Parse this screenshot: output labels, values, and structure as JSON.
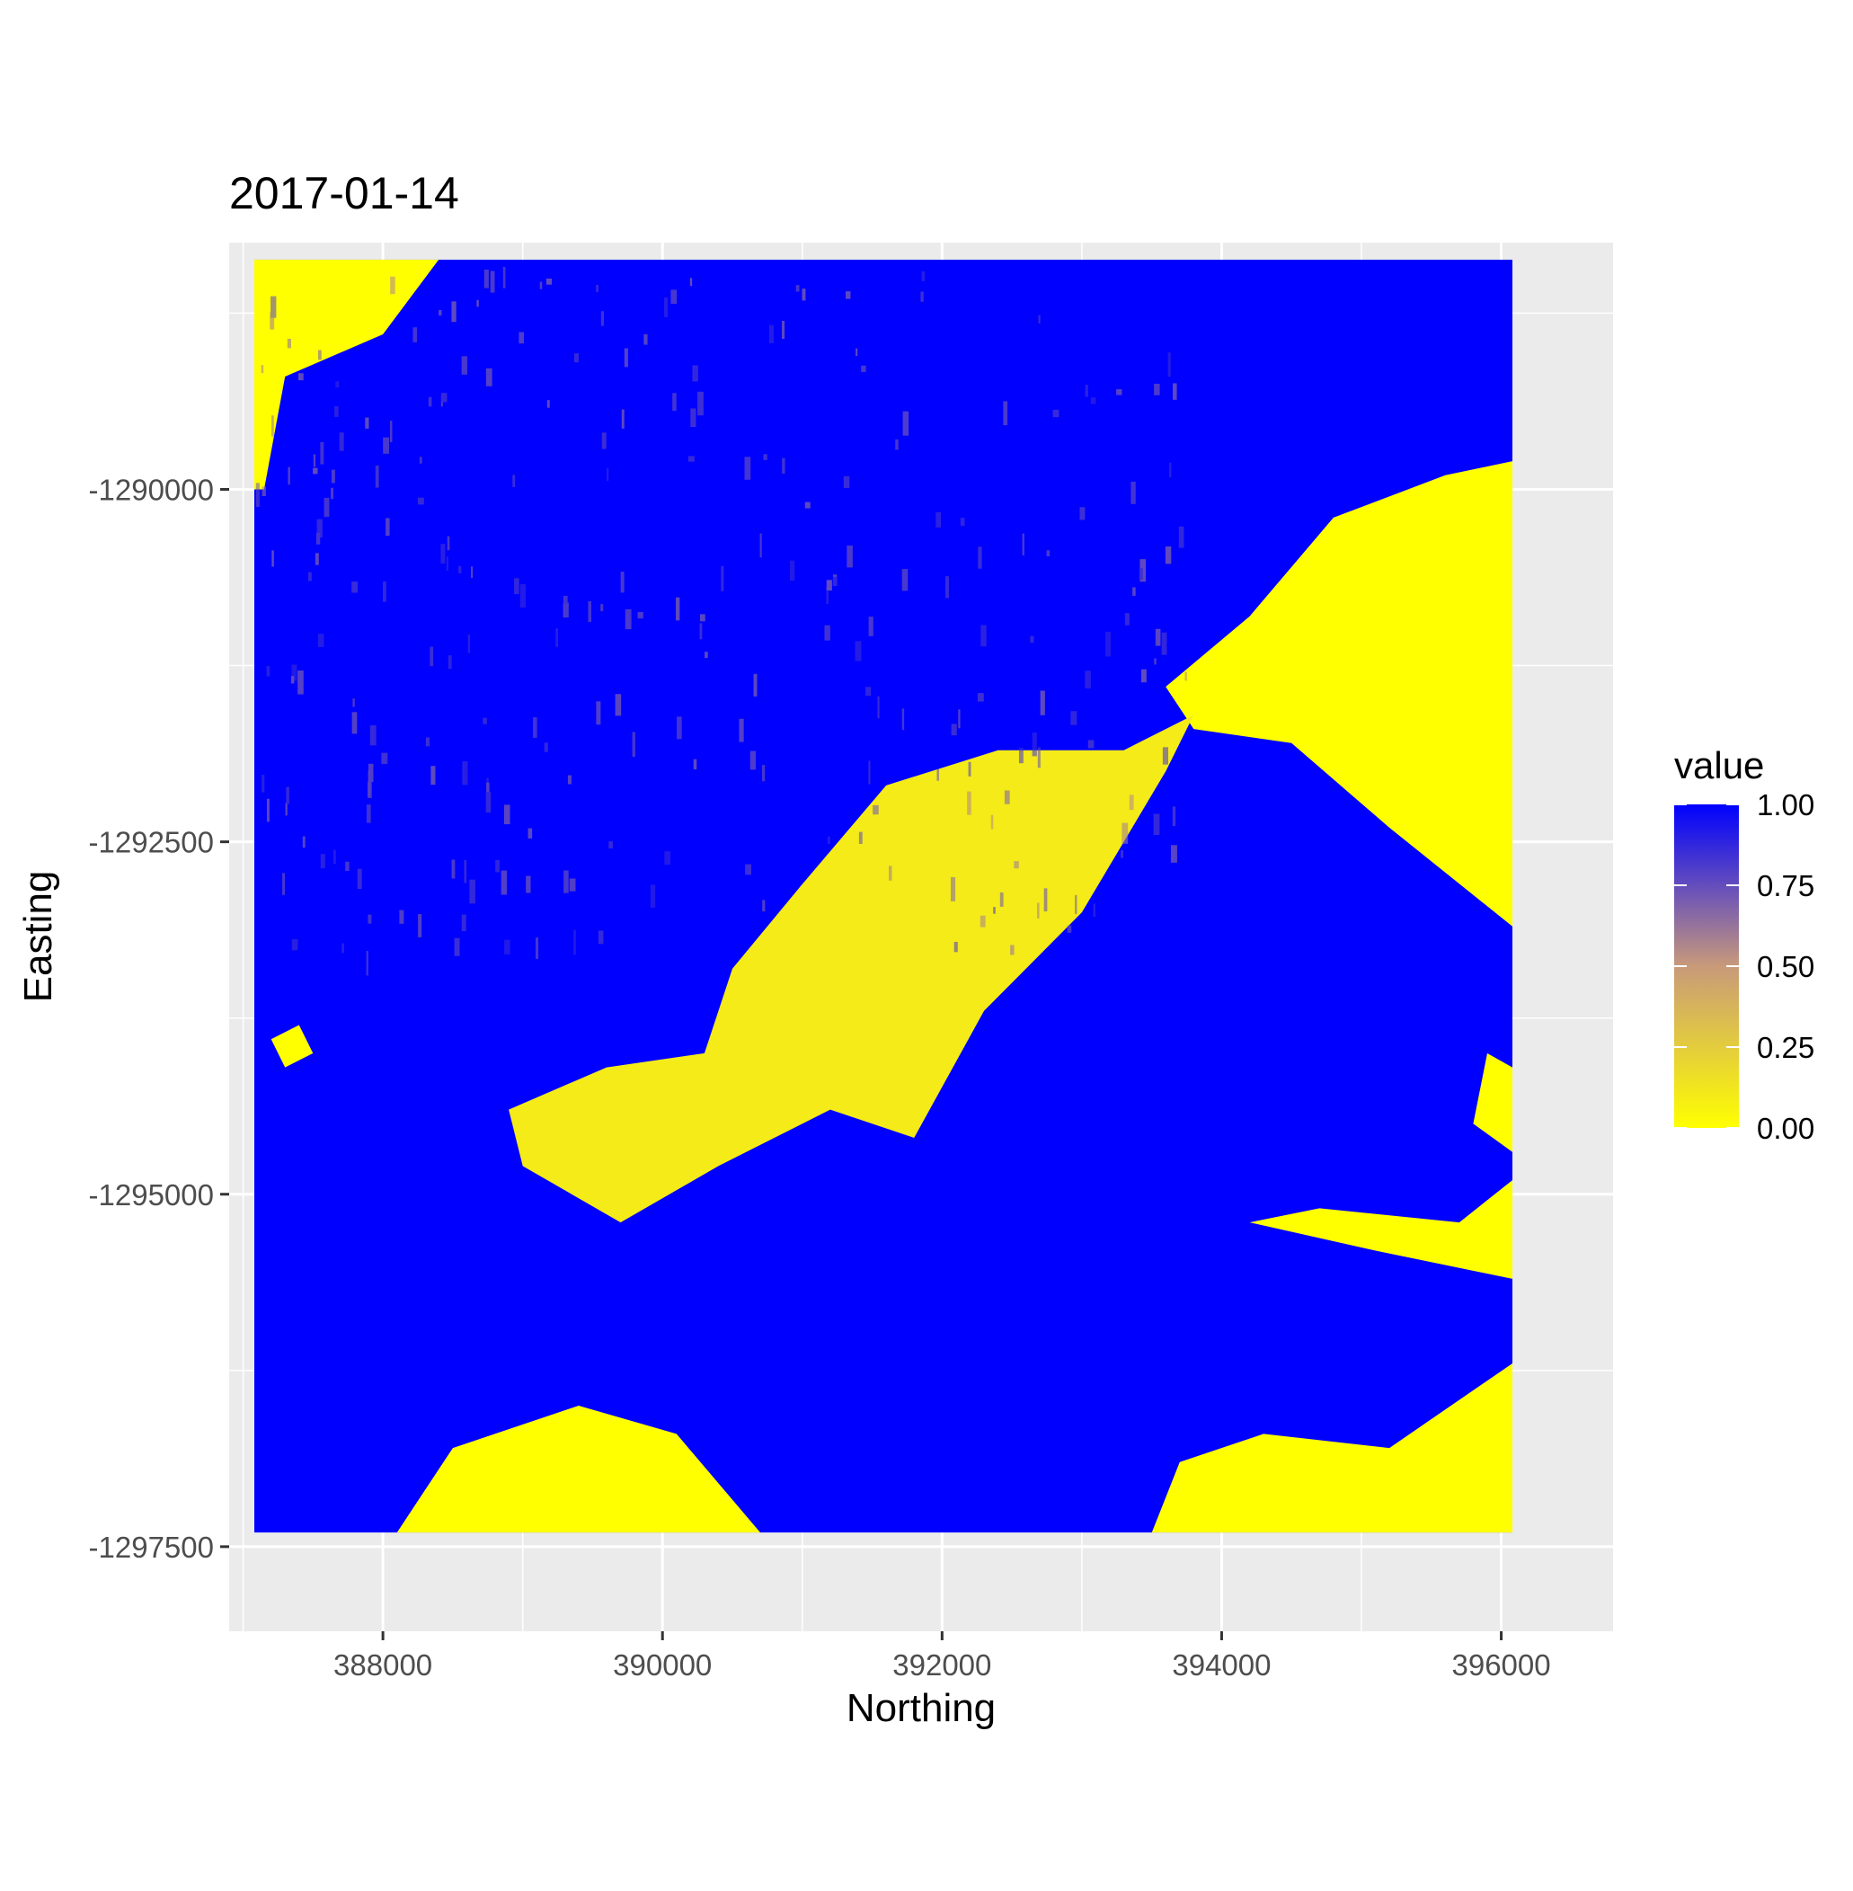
{
  "chart_data": {
    "type": "heatmap",
    "title": "2017-01-14",
    "xlabel": "Northing",
    "ylabel": "Easting",
    "xlim": [
      386900,
      396800
    ],
    "ylim": [
      -1298100,
      -1288250
    ],
    "raster_extent": {
      "x": [
        387080,
        396080
      ],
      "y": [
        -1297400,
        -1288370
      ]
    },
    "x_ticks": [
      388000,
      390000,
      392000,
      394000,
      396000
    ],
    "x_tick_labels": [
      "388000",
      "390000",
      "392000",
      "394000",
      "396000"
    ],
    "y_ticks": [
      -1290000,
      -1292500,
      -1295000,
      -1297500
    ],
    "y_tick_labels": [
      "-1290000",
      "-1292500",
      "-1295000",
      "-1297500"
    ],
    "grid": true,
    "legend": {
      "title": "value",
      "position": "right",
      "range": [
        0,
        1
      ],
      "breaks": [
        1.0,
        0.75,
        0.5,
        0.25,
        0.0
      ],
      "labels": [
        "1.00",
        "0.75",
        "0.50",
        "0.25",
        "0.00"
      ],
      "low_color": "#FFFF00",
      "mid_color": "#C89A7A",
      "high_color": "#0000FF"
    },
    "regions": [
      {
        "value": 1.0,
        "shape": "background",
        "note": "dominant high value across raster"
      },
      {
        "value": 0.0,
        "shape": "polygon",
        "points": [
          [
            387080,
            -1288370
          ],
          [
            388400,
            -1288370
          ],
          [
            388000,
            -1288900
          ],
          [
            387300,
            -1289200
          ],
          [
            387150,
            -1290000
          ],
          [
            387080,
            -1290000
          ]
        ]
      },
      {
        "value": 0.0,
        "shape": "polygon",
        "points": [
          [
            394200,
            -1290900
          ],
          [
            394800,
            -1290200
          ],
          [
            395600,
            -1289900
          ],
          [
            396080,
            -1289800
          ],
          [
            396080,
            -1293100
          ],
          [
            395200,
            -1292400
          ],
          [
            394500,
            -1291800
          ],
          [
            393800,
            -1291700
          ],
          [
            393600,
            -1291400
          ]
        ]
      },
      {
        "value": 0.1,
        "shape": "polygon",
        "points": [
          [
            393800,
            -1291600
          ],
          [
            393300,
            -1291850
          ],
          [
            392400,
            -1291850
          ],
          [
            391600,
            -1292100
          ],
          [
            391000,
            -1292800
          ],
          [
            390500,
            -1293400
          ],
          [
            390300,
            -1294000
          ],
          [
            389600,
            -1294100
          ],
          [
            388900,
            -1294400
          ],
          [
            389000,
            -1294800
          ],
          [
            389700,
            -1295200
          ],
          [
            390400,
            -1294800
          ],
          [
            391200,
            -1294400
          ],
          [
            391800,
            -1294600
          ],
          [
            392300,
            -1293700
          ],
          [
            393000,
            -1293000
          ],
          [
            393600,
            -1292000
          ]
        ]
      },
      {
        "value": 0.0,
        "shape": "polygon",
        "points": [
          [
            388100,
            -1297400
          ],
          [
            388500,
            -1296800
          ],
          [
            389400,
            -1296500
          ],
          [
            390100,
            -1296700
          ],
          [
            390700,
            -1297400
          ]
        ]
      },
      {
        "value": 0.0,
        "shape": "polygon",
        "points": [
          [
            393500,
            -1297400
          ],
          [
            393700,
            -1296900
          ],
          [
            394300,
            -1296700
          ],
          [
            395200,
            -1296800
          ],
          [
            396080,
            -1296200
          ],
          [
            396080,
            -1297400
          ]
        ]
      },
      {
        "value": 0.0,
        "shape": "polygon",
        "points": [
          [
            394200,
            -1295200
          ],
          [
            395100,
            -1295400
          ],
          [
            396080,
            -1295600
          ],
          [
            396080,
            -1294900
          ],
          [
            395700,
            -1295200
          ],
          [
            394700,
            -1295100
          ]
        ]
      },
      {
        "value": 0.0,
        "shape": "polygon",
        "points": [
          [
            395900,
            -1294000
          ],
          [
            396080,
            -1294100
          ],
          [
            396080,
            -1294700
          ],
          [
            395800,
            -1294500
          ]
        ]
      },
      {
        "value": 0.0,
        "shape": "polygon",
        "points": [
          [
            387200,
            -1293900
          ],
          [
            387400,
            -1293800
          ],
          [
            387500,
            -1294000
          ],
          [
            387300,
            -1294100
          ]
        ]
      }
    ]
  }
}
